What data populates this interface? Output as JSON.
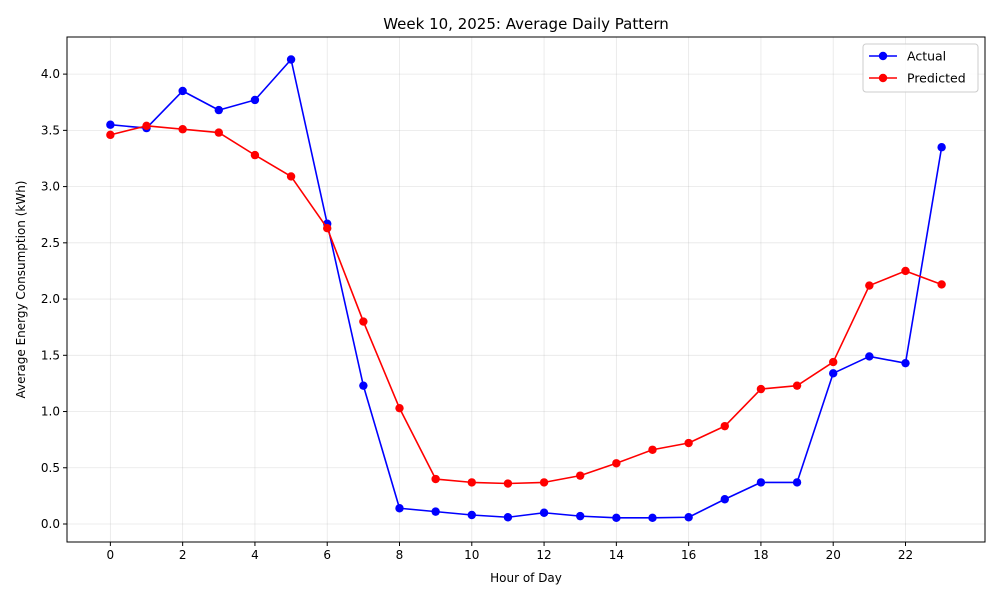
{
  "chart_data": {
    "type": "line",
    "title": "Week 10, 2025: Average Daily Pattern",
    "xlabel": "Hour of Day",
    "ylabel": "Average Energy Consumption (kWh)",
    "x": [
      0,
      1,
      2,
      3,
      4,
      5,
      6,
      7,
      8,
      9,
      10,
      11,
      12,
      13,
      14,
      15,
      16,
      17,
      18,
      19,
      20,
      21,
      22,
      23
    ],
    "xticks": [
      0,
      2,
      4,
      6,
      8,
      10,
      12,
      14,
      16,
      18,
      20,
      22
    ],
    "xticklabels": [
      "0",
      "2",
      "4",
      "6",
      "8",
      "10",
      "12",
      "14",
      "16",
      "18",
      "20",
      "22"
    ],
    "yticks": [
      0.0,
      0.5,
      1.0,
      1.5,
      2.0,
      2.5,
      3.0,
      3.5,
      4.0
    ],
    "yticklabels": [
      "0.0",
      "0.5",
      "1.0",
      "1.5",
      "2.0",
      "2.5",
      "3.0",
      "3.5",
      "4.0"
    ],
    "xlim": [
      -1.2,
      24.2
    ],
    "ylim": [
      -0.16,
      4.33
    ],
    "grid": true,
    "legend_position": "top-right",
    "series": [
      {
        "name": "Actual",
        "color": "#0000ff",
        "values": [
          3.55,
          3.52,
          3.85,
          3.68,
          3.77,
          4.13,
          2.67,
          1.23,
          0.14,
          0.11,
          0.08,
          0.06,
          0.1,
          0.07,
          0.055,
          0.055,
          0.06,
          0.22,
          0.37,
          0.37,
          1.34,
          1.49,
          1.43,
          3.35
        ]
      },
      {
        "name": "Predicted",
        "color": "#ff0000",
        "values": [
          3.46,
          3.54,
          3.51,
          3.48,
          3.28,
          3.09,
          2.63,
          1.8,
          1.03,
          0.4,
          0.37,
          0.36,
          0.37,
          0.43,
          0.54,
          0.66,
          0.72,
          0.87,
          1.2,
          1.23,
          1.44,
          2.12,
          2.25,
          2.13
        ]
      }
    ]
  }
}
